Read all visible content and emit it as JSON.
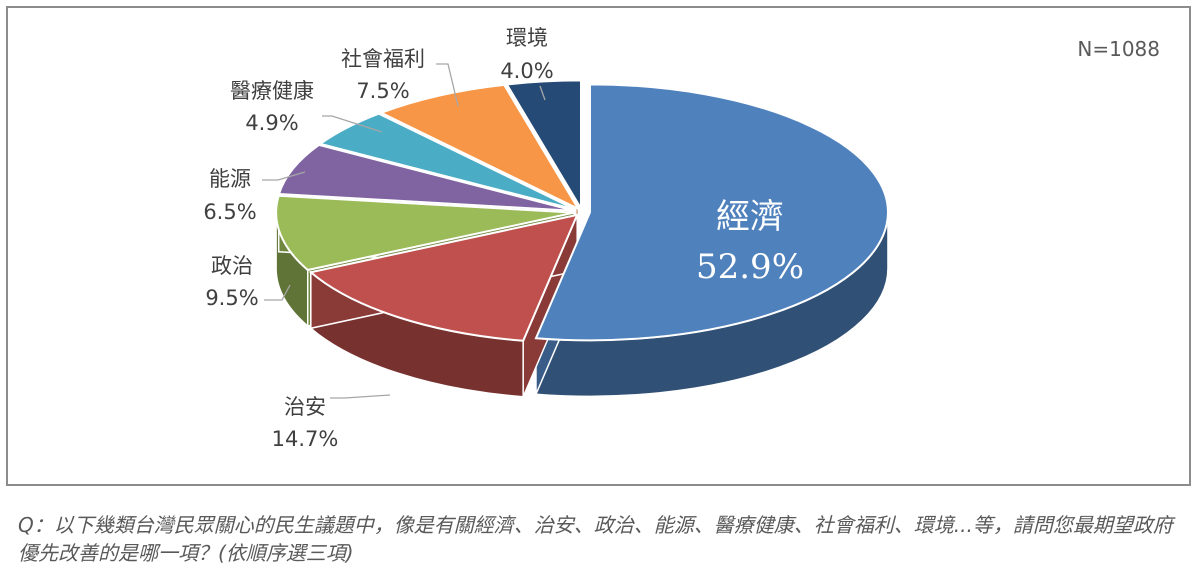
{
  "chart_data": {
    "type": "pie",
    "title": "",
    "sample_size": "N=1088",
    "slices": [
      {
        "label": "經濟",
        "value": 52.9,
        "value_label": "52.9%",
        "color": "#4f81bd"
      },
      {
        "label": "治安",
        "value": 14.7,
        "value_label": "14.7%",
        "color": "#c0504d"
      },
      {
        "label": "政治",
        "value": 9.5,
        "value_label": "9.5%",
        "color": "#9bbb59"
      },
      {
        "label": "能源",
        "value": 6.5,
        "value_label": "6.5%",
        "color": "#8064a2"
      },
      {
        "label": "醫療健康",
        "value": 4.9,
        "value_label": "4.9%",
        "color": "#4bacc6"
      },
      {
        "label": "社會福利",
        "value": 7.5,
        "value_label": "7.5%",
        "color": "#f79646"
      },
      {
        "label": "環境",
        "value": 4.0,
        "value_label": "4.0%",
        "color": "#254a75"
      }
    ]
  },
  "question_note": "Q：以下幾類台灣民眾關心的民生議題中，像是有關經濟、治安、政治、能源、醫療健康、社會福利、環境...等，請問您最期望政府優先改善的是哪一項？(依順序選三項)"
}
